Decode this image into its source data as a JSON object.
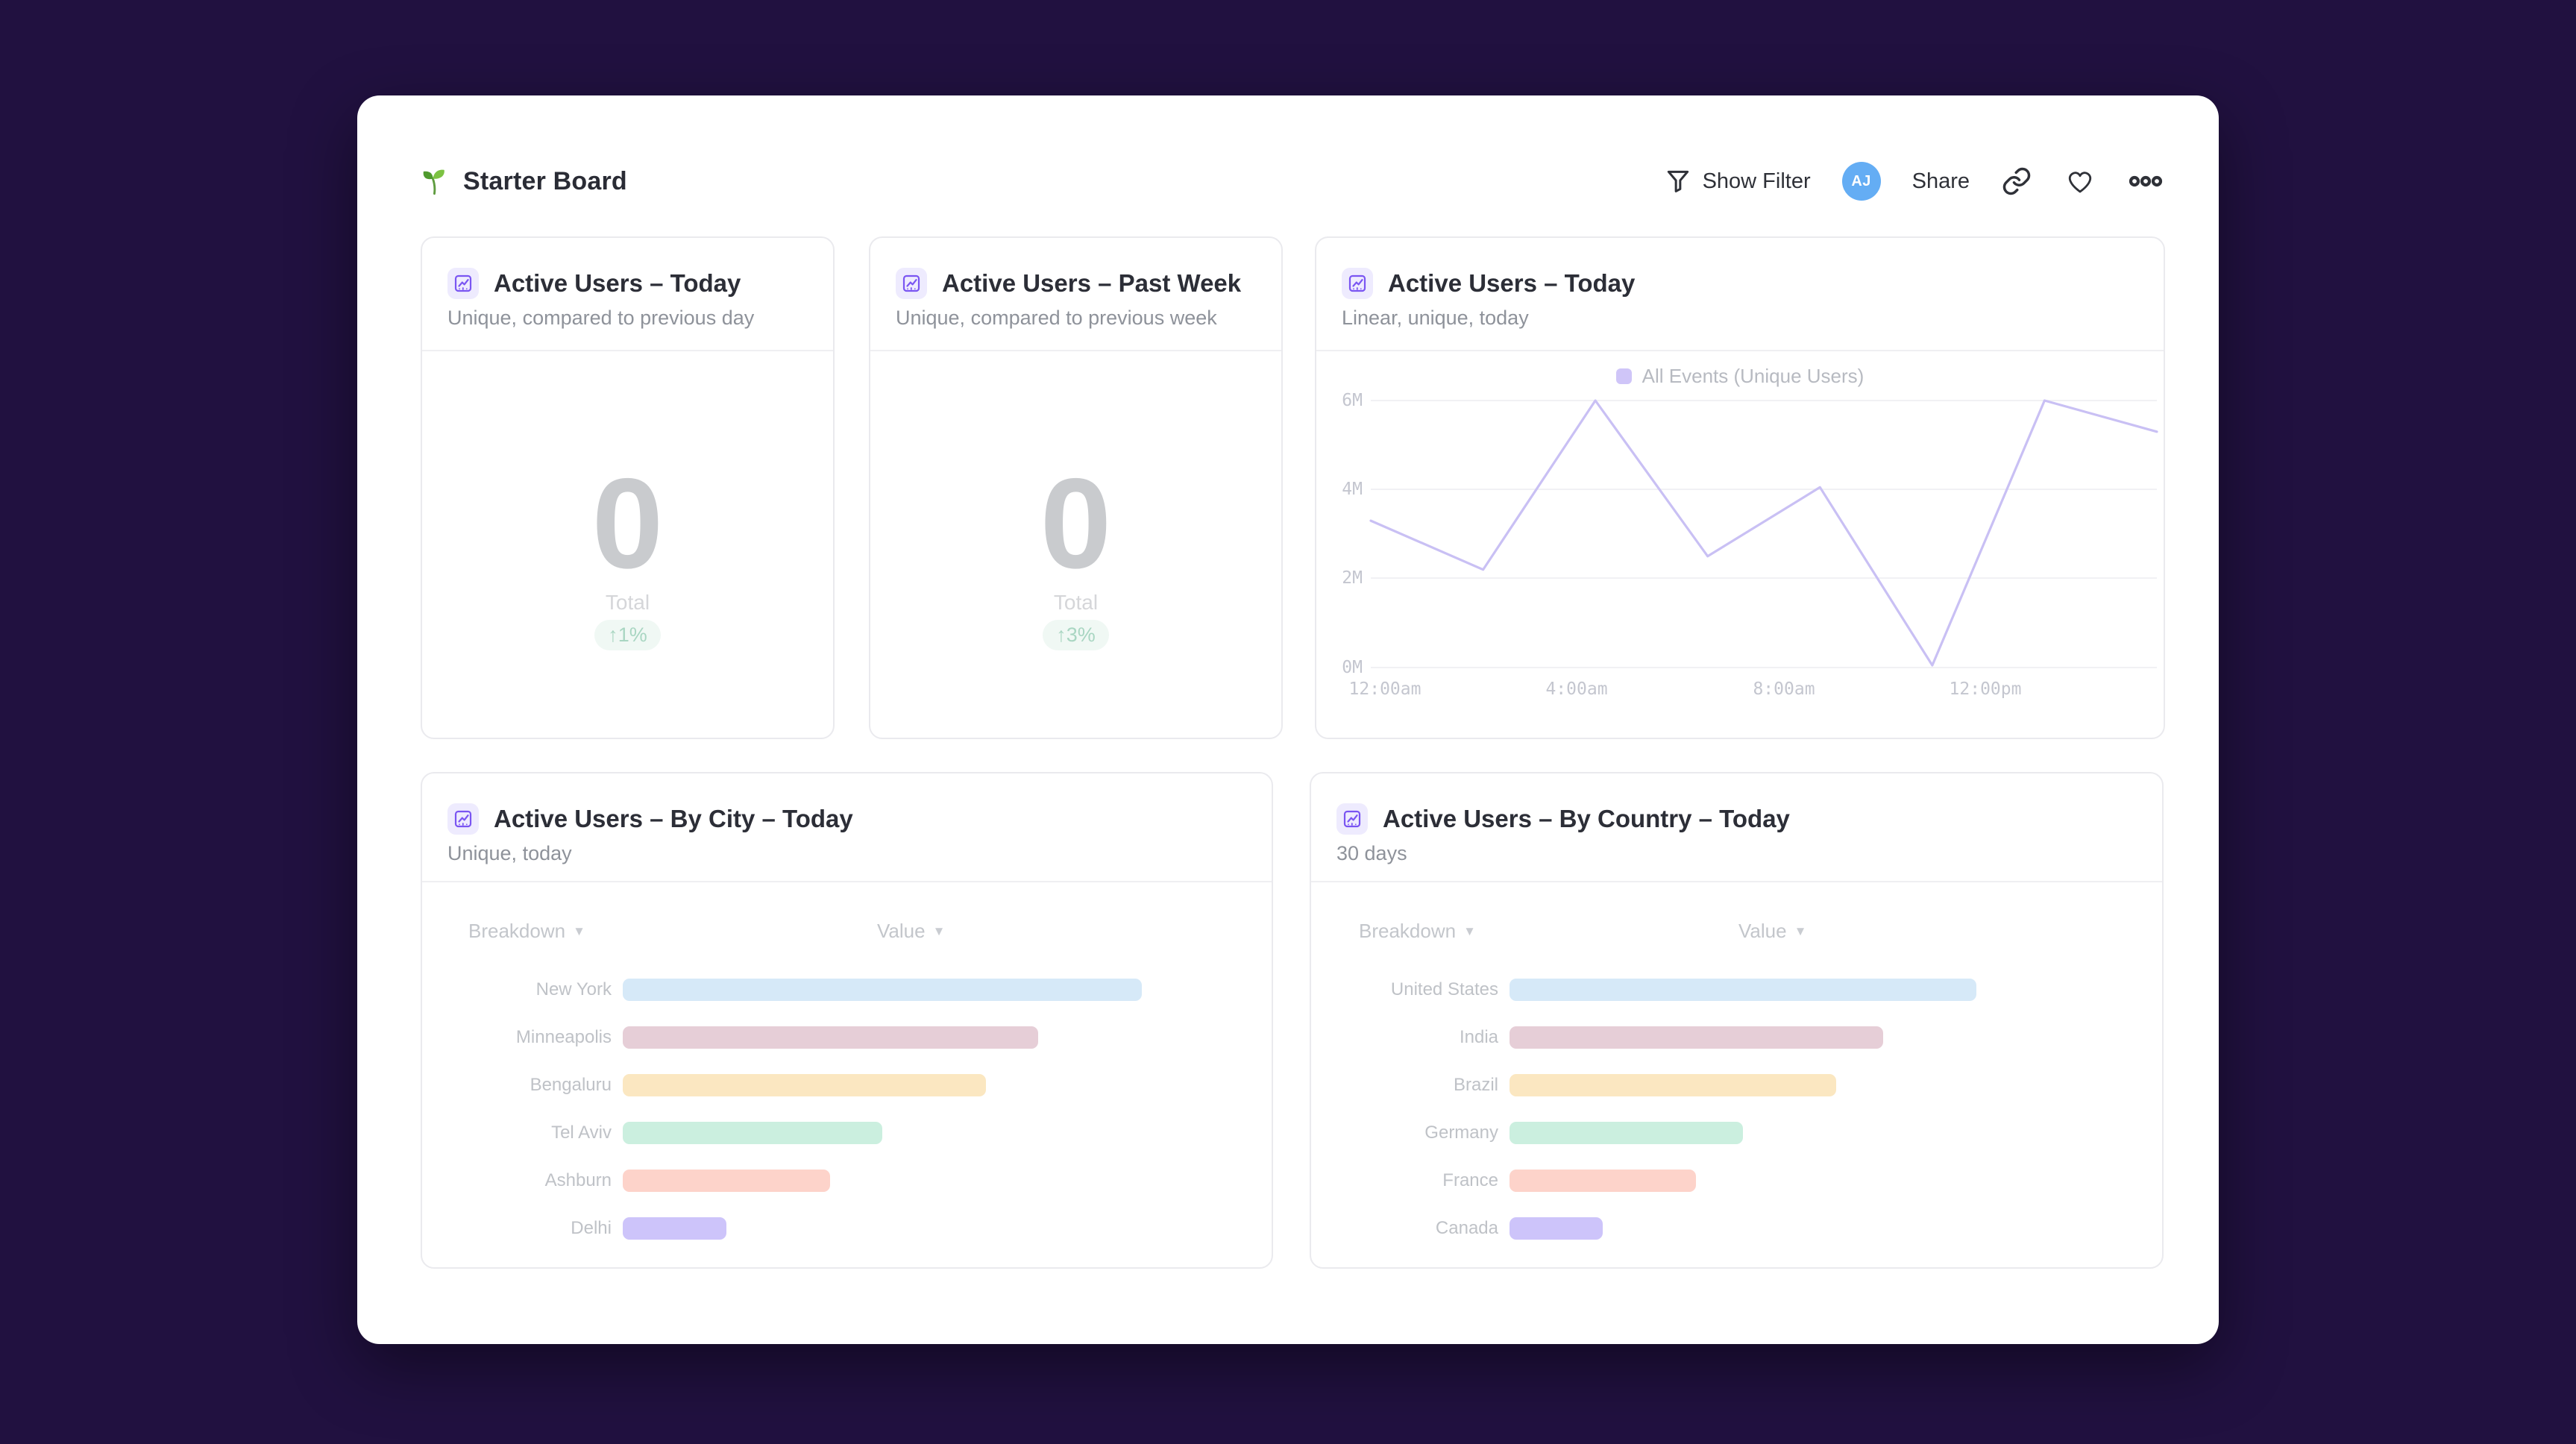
{
  "app": {
    "background_color": "#211140",
    "panel_color": "#ffffff",
    "accent_purple": "#7a55f2"
  },
  "header": {
    "title": "Starter Board",
    "title_icon": "seedling-icon",
    "actions": {
      "show_filter_label": "Show Filter",
      "avatar_initials": "AJ",
      "avatar_color": "#64adf4",
      "share_label": "Share"
    }
  },
  "cards": {
    "kpi_today": {
      "icon": "line-chart-icon",
      "title": "Active Users – Today",
      "subtitle": "Unique, compared to previous day",
      "value": "0",
      "value_label": "Total",
      "delta": "↑1%",
      "delta_color": "#a9d6c2",
      "delta_bg": "#f0f8f4"
    },
    "kpi_past_week": {
      "icon": "line-chart-icon",
      "title": "Active Users – Past Week",
      "subtitle": "Unique, compared to previous week",
      "value": "0",
      "value_label": "Total",
      "delta": "↑3%",
      "delta_color": "#a9d6c2",
      "delta_bg": "#f0f8f4"
    },
    "line_chart": {
      "icon": "line-chart-icon",
      "title": "Active Users – Today",
      "subtitle": "Linear, unique, today"
    },
    "by_city": {
      "icon": "line-chart-icon",
      "title": "Active Users – By City – Today",
      "subtitle": "Unique, today"
    },
    "by_country": {
      "icon": "line-chart-icon",
      "title": "Active Users – By Country – Today",
      "subtitle": "30 days"
    }
  },
  "chart_data": [
    {
      "id": "active-users-today-line",
      "type": "line",
      "title": "Active Users – Today",
      "subtitle": "Linear, unique, today",
      "legend": [
        "All Events (Unique Users)"
      ],
      "legend_position": "top-center",
      "grid": "horizontal",
      "x_axis": {
        "ticks": [
          "12:00am",
          "4:00am",
          "8:00am",
          "12:00pm"
        ],
        "tick_hours": [
          0,
          4,
          8,
          12
        ],
        "range_hours": [
          0,
          15.4
        ]
      },
      "y_axis": {
        "ticks_top_to_bottom": [
          "6M",
          "4M",
          "2M",
          "0M"
        ],
        "range_millions": [
          0,
          6
        ]
      },
      "series": [
        {
          "name": "All Events (Unique Users)",
          "color": "#c9c0f4",
          "points_hours": [
            0,
            2.2,
            4.4,
            6.6,
            8.8,
            11,
            13.2,
            15.4
          ],
          "values_millions": [
            3.3,
            2.2,
            6.0,
            2.5,
            4.05,
            0.05,
            6.0,
            5.3
          ]
        }
      ]
    },
    {
      "id": "active-users-by-city",
      "type": "bar",
      "title": "Active Users – By City – Today",
      "columns": [
        "Breakdown",
        "Value"
      ],
      "rows": [
        {
          "label": "New York",
          "pct_of_max": 100,
          "color": "#d6e9f8"
        },
        {
          "label": "Minneapolis",
          "pct_of_max": 80,
          "color": "#e6ced7"
        },
        {
          "label": "Bengaluru",
          "pct_of_max": 70,
          "color": "#fbe7c1"
        },
        {
          "label": "Tel Aviv",
          "pct_of_max": 50,
          "color": "#cbefdf"
        },
        {
          "label": "Ashburn",
          "pct_of_max": 40,
          "color": "#fdd3ca"
        },
        {
          "label": "Delhi",
          "pct_of_max": 20,
          "color": "#cdc4fa"
        }
      ]
    },
    {
      "id": "active-users-by-country",
      "type": "bar",
      "title": "Active Users – By Country – Today",
      "columns": [
        "Breakdown",
        "Value"
      ],
      "rows": [
        {
          "label": "United States",
          "pct_of_max": 100,
          "color": "#d6e9f8"
        },
        {
          "label": "India",
          "pct_of_max": 80,
          "color": "#e6ced7"
        },
        {
          "label": "Brazil",
          "pct_of_max": 70,
          "color": "#fbe7c1"
        },
        {
          "label": "Germany",
          "pct_of_max": 50,
          "color": "#cbefdf"
        },
        {
          "label": "France",
          "pct_of_max": 40,
          "color": "#fdd3ca"
        },
        {
          "label": "Canada",
          "pct_of_max": 20,
          "color": "#cdc4fa"
        }
      ]
    }
  ]
}
